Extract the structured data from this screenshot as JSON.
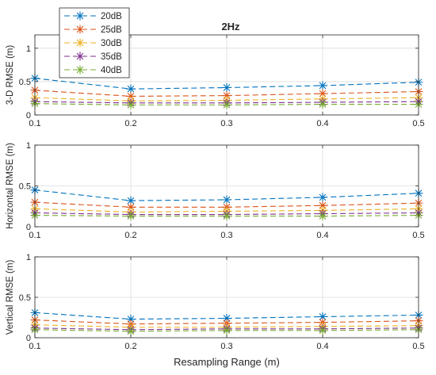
{
  "figure_title": "2Hz",
  "xlabel": "Resampling Range (m)",
  "colors": {
    "20dB": "#0072BD",
    "25dB": "#D95319",
    "30dB": "#EDB120",
    "35dB": "#7E2F8E",
    "40dB": "#77AC30",
    "grid": "#dcdcdc",
    "axis": "#262626"
  },
  "legend": {
    "placement": "top-left, outside top subplot",
    "entries": [
      "20dB",
      "25dB",
      "30dB",
      "35dB",
      "40dB"
    ]
  },
  "chart_data": [
    {
      "type": "line",
      "title": "2Hz",
      "xlabel": "",
      "ylabel": "3-D RMSE (m)",
      "x": [
        0.1,
        0.2,
        0.3,
        0.4,
        0.5
      ],
      "xlim": [
        0.1,
        0.5
      ],
      "ylim": [
        0,
        1.2
      ],
      "xticks": [
        "0.1",
        "0.2",
        "0.3",
        "0.4",
        "0.5"
      ],
      "yticks": [
        "0",
        "0.5",
        "1"
      ],
      "ytick_values": [
        0,
        0.5,
        1
      ],
      "grid": true,
      "series": [
        {
          "name": "20dB",
          "values": [
            0.55,
            0.39,
            0.41,
            0.44,
            0.49
          ]
        },
        {
          "name": "25dB",
          "values": [
            0.37,
            0.28,
            0.29,
            0.32,
            0.35
          ]
        },
        {
          "name": "30dB",
          "values": [
            0.26,
            0.21,
            0.22,
            0.24,
            0.26
          ]
        },
        {
          "name": "35dB",
          "values": [
            0.2,
            0.18,
            0.18,
            0.19,
            0.2
          ]
        },
        {
          "name": "40dB",
          "values": [
            0.17,
            0.15,
            0.15,
            0.16,
            0.16
          ]
        }
      ]
    },
    {
      "type": "line",
      "title": "",
      "xlabel": "",
      "ylabel": "Horizontal RMSE (m)",
      "x": [
        0.1,
        0.2,
        0.3,
        0.4,
        0.5
      ],
      "xlim": [
        0.1,
        0.5
      ],
      "ylim": [
        0,
        1
      ],
      "xticks": [
        "0.1",
        "0.2",
        "0.3",
        "0.4",
        "0.5"
      ],
      "yticks": [
        "0",
        "0.5",
        "1"
      ],
      "ytick_values": [
        0,
        0.5,
        1
      ],
      "grid": true,
      "series": [
        {
          "name": "20dB",
          "values": [
            0.45,
            0.32,
            0.33,
            0.36,
            0.41
          ]
        },
        {
          "name": "25dB",
          "values": [
            0.3,
            0.24,
            0.24,
            0.26,
            0.29
          ]
        },
        {
          "name": "30dB",
          "values": [
            0.22,
            0.18,
            0.19,
            0.2,
            0.22
          ]
        },
        {
          "name": "35dB",
          "values": [
            0.17,
            0.15,
            0.15,
            0.16,
            0.17
          ]
        },
        {
          "name": "40dB",
          "values": [
            0.14,
            0.13,
            0.13,
            0.13,
            0.14
          ]
        }
      ]
    },
    {
      "type": "line",
      "title": "",
      "xlabel": "Resampling Range (m)",
      "ylabel": "Vertical RMSE (m)",
      "x": [
        0.1,
        0.2,
        0.3,
        0.4,
        0.5
      ],
      "xlim": [
        0.1,
        0.5
      ],
      "ylim": [
        0,
        1
      ],
      "xticks": [
        "0.1",
        "0.2",
        "0.3",
        "0.4",
        "0.5"
      ],
      "yticks": [
        "0",
        "0.5",
        "1"
      ],
      "ytick_values": [
        0,
        0.5,
        1
      ],
      "grid": true,
      "series": [
        {
          "name": "20dB",
          "values": [
            0.31,
            0.23,
            0.24,
            0.26,
            0.28
          ]
        },
        {
          "name": "25dB",
          "values": [
            0.22,
            0.17,
            0.18,
            0.19,
            0.21
          ]
        },
        {
          "name": "30dB",
          "values": [
            0.16,
            0.13,
            0.13,
            0.14,
            0.15
          ]
        },
        {
          "name": "35dB",
          "values": [
            0.12,
            0.1,
            0.11,
            0.11,
            0.12
          ]
        },
        {
          "name": "40dB",
          "values": [
            0.1,
            0.08,
            0.09,
            0.09,
            0.1
          ]
        }
      ]
    }
  ]
}
